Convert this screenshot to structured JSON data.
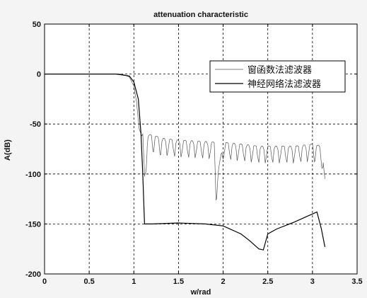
{
  "chart_data": {
    "type": "line",
    "title": "attenuation characteristic",
    "xlabel": "w/rad",
    "ylabel": "A(dB)",
    "xlim": [
      0,
      3.5
    ],
    "ylim": [
      -200,
      50
    ],
    "xticks": [
      "0",
      "0.5",
      "1",
      "1.5",
      "2",
      "2.5",
      "3",
      "3.5"
    ],
    "yticks": [
      "50",
      "0",
      "-50",
      "-100",
      "-150",
      "-200"
    ],
    "grid": true,
    "legend_position": "top-right",
    "series": [
      {
        "name": "窗函数法滤波器",
        "style": "thin-ripple",
        "x": [
          0,
          0.85,
          0.9,
          0.95,
          1.0,
          1.03,
          1.06,
          1.09,
          1.1,
          1.12,
          1.15,
          1.2,
          1.3,
          1.5,
          1.7,
          1.9,
          1.92,
          2.0,
          2.2,
          2.4,
          2.6,
          2.8,
          3.0,
          3.1,
          3.14
        ],
        "y": [
          0,
          0,
          -1,
          -3,
          -12,
          -28,
          -55,
          -62,
          -60,
          -100,
          -62,
          -60,
          -64,
          -66,
          -67,
          -68,
          -110,
          -68,
          -70,
          -72,
          -72,
          -72,
          -70,
          -72,
          -105
        ]
      },
      {
        "name": "神经网络法滤波器",
        "style": "thick",
        "x": [
          0,
          0.8,
          0.88,
          0.95,
          1.0,
          1.05,
          1.08,
          1.1,
          1.12,
          1.2,
          1.5,
          1.8,
          2.0,
          2.2,
          2.3,
          2.4,
          2.45,
          2.5,
          2.6,
          2.8,
          2.95,
          3.0,
          3.05,
          3.1,
          3.14
        ],
        "y": [
          0,
          0,
          -1,
          -2,
          -8,
          -25,
          -60,
          -100,
          -150,
          -150,
          -149,
          -150,
          -152,
          -160,
          -167,
          -175,
          -176,
          -160,
          -155,
          -148,
          -142,
          -140,
          -138,
          -155,
          -173
        ]
      }
    ]
  }
}
